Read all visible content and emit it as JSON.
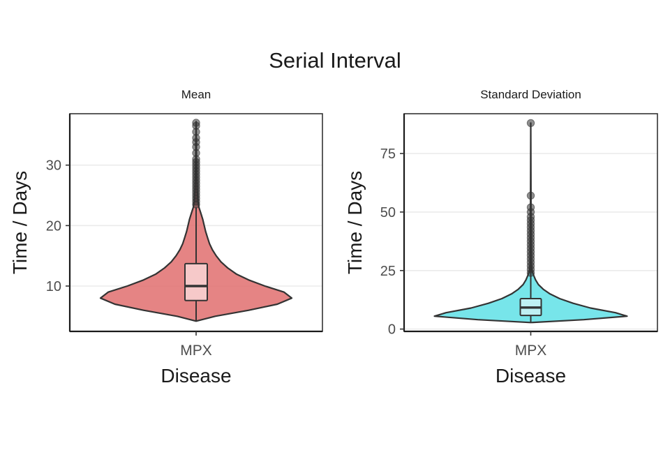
{
  "title": "Serial Interval",
  "chart_data": [
    {
      "type": "violin",
      "panel_title": "Mean",
      "xlabel": "Disease",
      "ylabel": "Time / Days",
      "categories": [
        "MPX"
      ],
      "ylim": [
        2.5,
        38.5
      ],
      "yticks": [
        10,
        20,
        30
      ],
      "grid": true,
      "fill": "#e06f6f",
      "box_fill": "#f6c9c9",
      "violin": {
        "min": 4.2,
        "max": 37.2,
        "profile": [
          [
            4.2,
            0.0
          ],
          [
            5.0,
            0.2
          ],
          [
            6.0,
            0.55
          ],
          [
            7.0,
            0.85
          ],
          [
            8.0,
            1.0
          ],
          [
            9.0,
            0.92
          ],
          [
            10.0,
            0.72
          ],
          [
            11.0,
            0.55
          ],
          [
            12.0,
            0.42
          ],
          [
            13.0,
            0.33
          ],
          [
            14.0,
            0.26
          ],
          [
            15.0,
            0.21
          ],
          [
            16.0,
            0.17
          ],
          [
            17.0,
            0.14
          ],
          [
            18.0,
            0.12
          ],
          [
            19.0,
            0.1
          ],
          [
            20.0,
            0.085
          ],
          [
            21.0,
            0.07
          ],
          [
            22.0,
            0.05
          ],
          [
            23.0,
            0.03
          ],
          [
            24.0,
            0.02
          ],
          [
            26.0,
            0.012
          ],
          [
            28.0,
            0.008
          ],
          [
            30.0,
            0.005
          ],
          [
            33.0,
            0.003
          ],
          [
            37.2,
            0.0
          ]
        ]
      },
      "box": {
        "whisker_low": 4.2,
        "q1": 7.6,
        "median": 10.0,
        "q3": 13.7,
        "whisker_high": 23.0
      },
      "outliers": [
        23.5,
        24.0,
        24.5,
        25.0,
        25.5,
        26.0,
        26.5,
        27.0,
        27.5,
        28.0,
        28.5,
        29.0,
        29.5,
        30.0,
        30.5,
        31.0,
        32.0,
        33.0,
        33.8,
        34.5,
        35.5,
        36.5,
        37.0
      ]
    },
    {
      "type": "violin",
      "panel_title": "Standard Deviation",
      "xlabel": "Disease",
      "ylabel": "Time / Days",
      "categories": [
        "MPX"
      ],
      "ylim": [
        -1,
        92
      ],
      "yticks": [
        0,
        25,
        50,
        75
      ],
      "grid": true,
      "fill": "#5fe0e6",
      "box_fill": "#bff0f3",
      "violin": {
        "min": 2.8,
        "max": 88.0,
        "profile": [
          [
            2.8,
            0.0
          ],
          [
            4.0,
            0.55
          ],
          [
            5.5,
            1.0
          ],
          [
            7.0,
            0.88
          ],
          [
            9.0,
            0.62
          ],
          [
            11.0,
            0.44
          ],
          [
            13.0,
            0.3
          ],
          [
            15.0,
            0.2
          ],
          [
            17.0,
            0.13
          ],
          [
            19.0,
            0.08
          ],
          [
            21.0,
            0.05
          ],
          [
            23.0,
            0.03
          ],
          [
            25.0,
            0.012
          ],
          [
            28.0,
            0.006
          ],
          [
            35.0,
            0.004
          ],
          [
            45.0,
            0.003
          ],
          [
            60.0,
            0.002
          ],
          [
            88.0,
            0.0
          ]
        ]
      },
      "box": {
        "whisker_low": 2.8,
        "q1": 5.8,
        "median": 9.2,
        "q3": 13.0,
        "whisker_high": 88.0
      },
      "outliers": [
        24.0,
        25.5,
        27.0,
        28.5,
        30.0,
        31.5,
        33.0,
        34.5,
        36.0,
        37.5,
        39.0,
        40.5,
        42.0,
        43.5,
        45.0,
        46.5,
        48.0,
        50.0,
        52.0,
        57.0,
        88.0
      ]
    }
  ]
}
